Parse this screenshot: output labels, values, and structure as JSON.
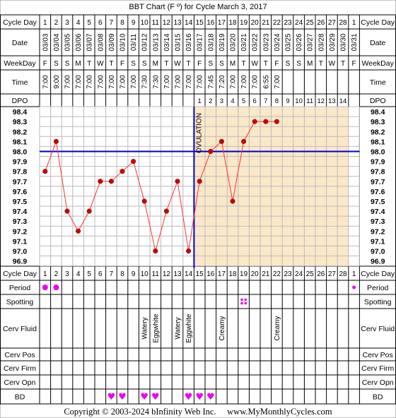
{
  "title": "BBT Chart (F º) for Cycle March 3, 2017",
  "footer": "Copyright © 2003-2024 bInfinity Web Inc.     www.MyMonthlyCycles.com",
  "row_labels": {
    "cycle_day": "Cycle Day",
    "date": "Date",
    "weekday": "WeekDay",
    "time": "Time",
    "dpo": "DPO",
    "period": "Period",
    "spotting": "Spotting",
    "cerv_fluid": "Cerv Fluid",
    "cerv_pos": "Cerv Pos",
    "cerv_firm": "Cerv Firm",
    "cerv_opn": "Cerv Opn",
    "bd": "BD"
  },
  "colors": {
    "line": "#ff3333",
    "point": "#cc0000",
    "coverline": "#0000cc",
    "luteal_fill": "#fbe8c8",
    "magenta": "#ee00ee",
    "grid": "#bbbbbb"
  },
  "chart_data": {
    "type": "line",
    "title": "BBT Chart (F º) for Cycle March 3, 2017",
    "ylim": [
      96.9,
      98.4
    ],
    "y_ticks": [
      "98.4",
      "98.3",
      "98.2",
      "98.1",
      "98.0",
      "97.9",
      "97.8",
      "97.7",
      "97.6",
      "97.5",
      "97.4",
      "97.3",
      "97.2",
      "97.1",
      "97.0",
      "96.9"
    ],
    "days": [
      1,
      2,
      3,
      4,
      5,
      6,
      7,
      8,
      9,
      10,
      11,
      12,
      13,
      14,
      15,
      16,
      17,
      18,
      19,
      20,
      21,
      22,
      23,
      24,
      25,
      26,
      27,
      28,
      1
    ],
    "dates": [
      "03/03",
      "03/04",
      "03/05",
      "03/06",
      "03/07",
      "03/08",
      "03/09",
      "03/10",
      "03/11",
      "03/12",
      "03/13",
      "03/14",
      "03/15",
      "03/16",
      "03/17",
      "03/18",
      "03/19",
      "03/20",
      "03/21",
      "03/22",
      "03/23",
      "03/24",
      "03/25",
      "03/26",
      "03/27",
      "03/28",
      "03/29",
      "03/30",
      "03/31"
    ],
    "weekdays": [
      "F",
      "S",
      "S",
      "M",
      "T",
      "W",
      "T",
      "F",
      "S",
      "S",
      "M",
      "T",
      "W",
      "T",
      "F",
      "S",
      "S",
      "M",
      "T",
      "W",
      "T",
      "F",
      "S",
      "S",
      "M",
      "T",
      "W",
      "T",
      "F"
    ],
    "times": [
      "7:00",
      "9:00",
      "7:00",
      "7:00",
      "7:00",
      "7:00",
      "7:00",
      "7:00",
      "7:00",
      "7:30",
      "7:30",
      "7:00",
      "7:00",
      "7:00",
      "7:00",
      "7:45",
      "7:20",
      "7:00",
      "7:00",
      "7:00",
      "6:55",
      "7:00",
      "",
      "",
      "",
      "",
      "",
      "",
      ""
    ],
    "dpo": [
      "",
      "",
      "",
      "",
      "",
      "",
      "",
      "",
      "",
      "",
      "",
      "",
      "",
      "",
      "1",
      "2",
      "3",
      "4",
      "5",
      "6",
      "7",
      "8",
      "9",
      "10",
      "11",
      "12",
      "13",
      "14",
      ""
    ],
    "temps": [
      97.8,
      98.1,
      97.4,
      97.2,
      97.4,
      97.7,
      97.7,
      97.8,
      97.9,
      97.5,
      97.0,
      97.4,
      97.7,
      97.0,
      97.7,
      98.0,
      98.1,
      97.5,
      98.1,
      98.3,
      98.3,
      98.3,
      null,
      null,
      null,
      null,
      null,
      null,
      null
    ],
    "coverline": 98.0,
    "ovulation_day": 14,
    "ovulation_label": "OVULATION",
    "luteal_start_day": 15,
    "luteal_end_day": 28,
    "period": [
      "big",
      "big",
      "",
      "",
      "",
      "",
      "",
      "",
      "",
      "",
      "",
      "",
      "",
      "",
      "",
      "",
      "",
      "",
      "",
      "",
      "",
      "",
      "",
      "",
      "",
      "",
      "",
      "",
      "small"
    ],
    "spotting_days": [
      19
    ],
    "cerv_fluid": [
      "",
      "",
      "",
      "",
      "",
      "",
      "",
      "",
      "",
      "Watery",
      "Eggwhite",
      "",
      "Watery",
      "Eggwhite",
      "",
      "",
      "Creamy",
      "",
      "",
      "",
      "",
      "Creamy",
      "",
      "",
      "",
      "",
      "",
      "",
      ""
    ],
    "bd_days": [
      7,
      8,
      10,
      11,
      14,
      15,
      16
    ]
  }
}
